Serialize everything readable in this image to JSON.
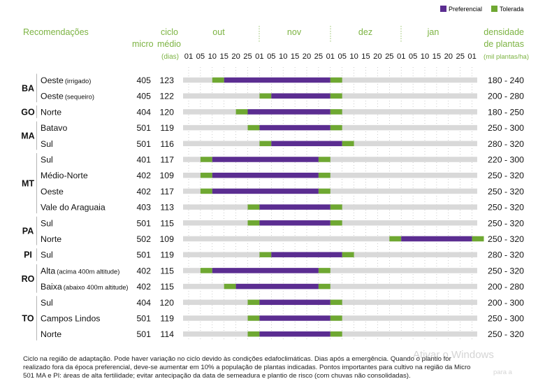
{
  "chart_data": {
    "type": "gantt",
    "legend": [
      {
        "label": "Preferencial",
        "color": "#5b2d91"
      },
      {
        "label": "Tolerada",
        "color": "#6fa832"
      }
    ],
    "headers": {
      "recomendacoes": "Recomendações",
      "micro": "micro",
      "ciclo": "ciclo",
      "medio": "médio",
      "dias": "(dias)",
      "densidade": "densidade",
      "de_plantas": "de plantas",
      "mil_plantas": "(mil plantas/ha)"
    },
    "months": [
      "out",
      "nov",
      "dez",
      "jan"
    ],
    "day_ticks": [
      "01",
      "05",
      "10",
      "15",
      "20",
      "25",
      "01",
      "05",
      "10",
      "15",
      "20",
      "25",
      "01",
      "05",
      "10",
      "15",
      "20",
      "25",
      "01",
      "05",
      "10",
      "15",
      "20",
      "25",
      "01"
    ],
    "rows": [
      {
        "state": "BA",
        "region": "Oeste",
        "note": "(irrigado)",
        "micro": "405",
        "ciclo": "123",
        "densidade": "180 - 240",
        "tolerada": [
          2,
          3
        ],
        "preferencial": [
          3,
          12
        ],
        "tolerada_end": [
          12,
          13
        ]
      },
      {
        "state": "",
        "region": "Oeste",
        "note": "(sequeiro)",
        "micro": "405",
        "ciclo": "122",
        "densidade": "200 - 280",
        "tolerada": [
          6,
          7
        ],
        "preferencial": [
          7,
          12
        ],
        "tolerada_end": [
          12,
          13
        ]
      },
      {
        "state": "GO",
        "region": "Norte",
        "note": "",
        "micro": "404",
        "ciclo": "120",
        "densidade": "180 - 250",
        "tolerada": [
          4,
          5
        ],
        "preferencial": [
          5,
          12
        ],
        "tolerada_end": [
          12,
          13
        ]
      },
      {
        "state": "MA",
        "region": "Batavo",
        "note": "",
        "micro": "501",
        "ciclo": "119",
        "densidade": "250 - 300",
        "tolerada": [
          5,
          6
        ],
        "preferencial": [
          6,
          12
        ],
        "tolerada_end": [
          12,
          13
        ]
      },
      {
        "state": "",
        "region": "Sul",
        "note": "",
        "micro": "501",
        "ciclo": "116",
        "densidade": "280 - 320",
        "tolerada": [
          6,
          7
        ],
        "preferencial": [
          7,
          13
        ],
        "tolerada_end": [
          13,
          14
        ]
      },
      {
        "state": "MT",
        "region": "Sul",
        "note": "",
        "micro": "401",
        "ciclo": "117",
        "densidade": "220 - 300",
        "tolerada": [
          1,
          2
        ],
        "preferencial": [
          2,
          11
        ],
        "tolerada_end": [
          11,
          12
        ]
      },
      {
        "state": "",
        "region": "Médio-Norte",
        "note": "",
        "micro": "402",
        "ciclo": "109",
        "densidade": "250 - 320",
        "tolerada": [
          1,
          2
        ],
        "preferencial": [
          2,
          11
        ],
        "tolerada_end": [
          11,
          12
        ]
      },
      {
        "state": "",
        "region": "Oeste",
        "note": "",
        "micro": "402",
        "ciclo": "117",
        "densidade": "250 - 320",
        "tolerada": [
          1,
          2
        ],
        "preferencial": [
          2,
          11
        ],
        "tolerada_end": [
          11,
          12
        ]
      },
      {
        "state": "",
        "region": "Vale do Araguaia",
        "note": "",
        "micro": "403",
        "ciclo": "113",
        "densidade": "250 - 320",
        "tolerada": [
          5,
          6
        ],
        "preferencial": [
          6,
          12
        ],
        "tolerada_end": [
          12,
          13
        ]
      },
      {
        "state": "PA",
        "region": "Sul",
        "note": "",
        "micro": "501",
        "ciclo": "115",
        "densidade": "250 - 320",
        "tolerada": [
          5,
          6
        ],
        "preferencial": [
          6,
          12
        ],
        "tolerada_end": [
          12,
          13
        ]
      },
      {
        "state": "",
        "region": "Norte",
        "note": "",
        "micro": "502",
        "ciclo": "109",
        "densidade": "250 - 320",
        "tolerada": [
          17,
          18
        ],
        "preferencial": [
          18,
          24
        ],
        "tolerada_end": [
          24,
          25
        ]
      },
      {
        "state": "PI",
        "region": "Sul",
        "note": "",
        "micro": "501",
        "ciclo": "119",
        "densidade": "280 - 320",
        "tolerada": [
          6,
          7
        ],
        "preferencial": [
          7,
          13
        ],
        "tolerada_end": [
          13,
          14
        ]
      },
      {
        "state": "RO",
        "region": "Alta",
        "note": "(acima 400m altitude)",
        "micro": "402",
        "ciclo": "115",
        "densidade": "250 - 320",
        "tolerada": [
          1,
          2
        ],
        "preferencial": [
          2,
          11
        ],
        "tolerada_end": [
          11,
          12
        ]
      },
      {
        "state": "",
        "region": "Baixa",
        "note": "(abaixo 400m altitude)",
        "micro": "402",
        "ciclo": "115",
        "densidade": "200 - 280",
        "tolerada": [
          3,
          4
        ],
        "preferencial": [
          4,
          11
        ],
        "tolerada_end": [
          11,
          12
        ]
      },
      {
        "state": "TO",
        "region": "Sul",
        "note": "",
        "micro": "404",
        "ciclo": "120",
        "densidade": "200 - 300",
        "tolerada": [
          5,
          6
        ],
        "preferencial": [
          6,
          12
        ],
        "tolerada_end": [
          12,
          13
        ]
      },
      {
        "state": "",
        "region": "Campos Lindos",
        "note": "",
        "micro": "501",
        "ciclo": "119",
        "densidade": "250 - 300",
        "tolerada": [
          5,
          6
        ],
        "preferencial": [
          6,
          12
        ],
        "tolerada_end": [
          12,
          13
        ]
      },
      {
        "state": "",
        "region": "Norte",
        "note": "",
        "micro": "501",
        "ciclo": "114",
        "densidade": "250 - 320",
        "tolerada": [
          5,
          6
        ],
        "preferencial": [
          6,
          12
        ],
        "tolerada_end": [
          12,
          13
        ]
      }
    ],
    "state_groups": [
      {
        "label": "BA",
        "first": 0,
        "last": 1
      },
      {
        "label": "GO",
        "first": 2,
        "last": 2
      },
      {
        "label": "MA",
        "first": 3,
        "last": 4
      },
      {
        "label": "MT",
        "first": 5,
        "last": 8
      },
      {
        "label": "PA",
        "first": 9,
        "last": 10
      },
      {
        "label": "PI",
        "first": 11,
        "last": 11
      },
      {
        "label": "RO",
        "first": 12,
        "last": 13
      },
      {
        "label": "TO",
        "first": 14,
        "last": 16
      }
    ]
  },
  "colors": {
    "preferencial": "#5b2d91",
    "tolerada": "#6fa832",
    "header_green": "#7cb342",
    "track": "#d9d9d9"
  },
  "footnote": {
    "line1": "Ciclo na região de adaptação. Pode haver variação no ciclo devido às condições edafoclimáticas. Dias após a emergência. Quando o plantio for",
    "line2": "realizado fora da época preferencial, deve-se aumentar em 10% a população de plantas indicadas. Pontos importantes para cultivo na região da Micro",
    "line3": "501 MA e PI: áreas de alta fertilidade; evitar antecipação da data de semeadura e plantio de risco (com chuvas não consolidadas)."
  },
  "watermark": {
    "line1": "Ativar o Windows",
    "line2": "para a"
  }
}
